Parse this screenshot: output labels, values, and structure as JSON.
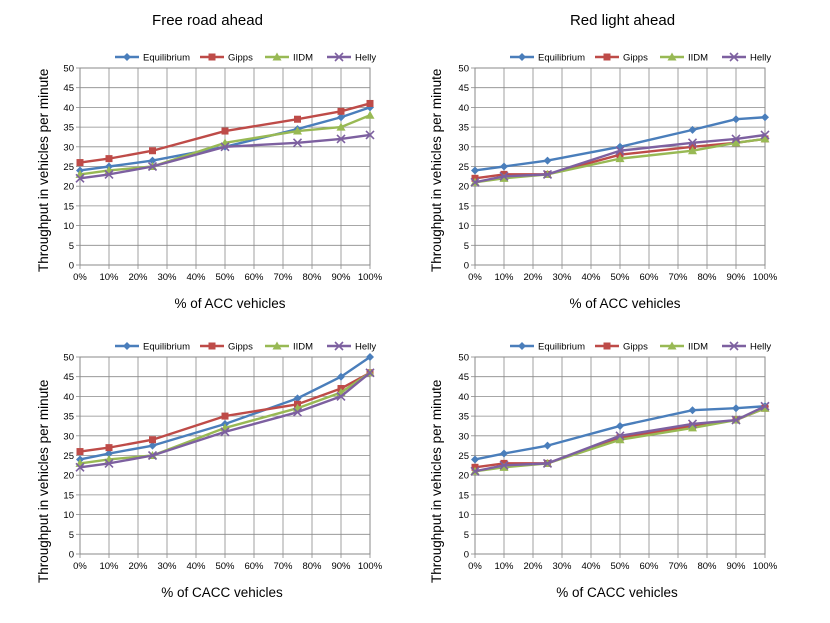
{
  "legend_labels": [
    "Equilibrium",
    "Gipps",
    "IIDM",
    "Helly"
  ],
  "series_colors": [
    "#4a7ebb",
    "#be4b48",
    "#98b954",
    "#7d60a0"
  ],
  "series_markers": [
    "diamond",
    "square",
    "triangle",
    "x"
  ],
  "chart_data": [
    {
      "type": "line",
      "title": "Free road ahead",
      "xlabel": "% of ACC vehicles",
      "ylabel": "Throughput in vehicles per minute",
      "x": [
        0,
        10,
        25,
        50,
        75,
        90,
        100
      ],
      "xticks": [
        "0%",
        "10%",
        "20%",
        "30%",
        "40%",
        "50%",
        "60%",
        "70%",
        "80%",
        "90%",
        "100%"
      ],
      "ylim": [
        0,
        50
      ],
      "yticks": [
        0,
        5,
        10,
        15,
        20,
        25,
        30,
        35,
        40,
        45,
        50
      ],
      "legend": "top",
      "series": [
        {
          "name": "Equilibrium",
          "values": [
            24,
            25,
            26.5,
            30,
            34.5,
            37.5,
            40
          ]
        },
        {
          "name": "Gipps",
          "values": [
            26,
            27,
            29,
            34,
            37,
            39,
            41
          ]
        },
        {
          "name": "IIDM",
          "values": [
            23,
            24,
            25,
            31,
            34,
            35,
            38
          ]
        },
        {
          "name": "Helly",
          "values": [
            22,
            23,
            25,
            30,
            31,
            32,
            33
          ]
        }
      ]
    },
    {
      "type": "line",
      "title": "Red light ahead",
      "xlabel": "% of ACC vehicles",
      "ylabel": "Throughput in vehicles per minute",
      "x": [
        0,
        10,
        25,
        50,
        75,
        90,
        100
      ],
      "xticks": [
        "0%",
        "10%",
        "20%",
        "30%",
        "40%",
        "50%",
        "60%",
        "70%",
        "80%",
        "90%",
        "100%"
      ],
      "ylim": [
        0,
        50
      ],
      "yticks": [
        0,
        5,
        10,
        15,
        20,
        25,
        30,
        35,
        40,
        45,
        50
      ],
      "legend": "top",
      "series": [
        {
          "name": "Equilibrium",
          "values": [
            24,
            25,
            26.5,
            30,
            34.3,
            37,
            37.5
          ]
        },
        {
          "name": "Gipps",
          "values": [
            22,
            23,
            23,
            28,
            30,
            31,
            32
          ]
        },
        {
          "name": "IIDM",
          "values": [
            21,
            22,
            23,
            27,
            29,
            31,
            32
          ]
        },
        {
          "name": "Helly",
          "values": [
            21,
            22.5,
            23,
            29,
            31,
            32,
            33
          ]
        }
      ]
    },
    {
      "type": "line",
      "title": "",
      "xlabel": "% of CACC vehicles",
      "ylabel": "Throughput in vehicles per minute",
      "x": [
        0,
        10,
        25,
        50,
        75,
        90,
        100
      ],
      "xticks": [
        "0%",
        "10%",
        "20%",
        "30%",
        "40%",
        "50%",
        "60%",
        "70%",
        "80%",
        "90%",
        "100%"
      ],
      "ylim": [
        0,
        50
      ],
      "yticks": [
        0,
        5,
        10,
        15,
        20,
        25,
        30,
        35,
        40,
        45,
        50
      ],
      "legend": "top",
      "series": [
        {
          "name": "Equilibrium",
          "values": [
            24,
            25.5,
            27.5,
            33,
            39.5,
            45,
            50
          ]
        },
        {
          "name": "Gipps",
          "values": [
            26,
            27,
            29,
            35,
            38,
            42,
            46
          ]
        },
        {
          "name": "IIDM",
          "values": [
            23,
            24,
            25,
            32,
            37,
            41,
            46
          ]
        },
        {
          "name": "Helly",
          "values": [
            22,
            23,
            25,
            31,
            36,
            40,
            46
          ]
        }
      ]
    },
    {
      "type": "line",
      "title": "",
      "xlabel": "% of CACC vehicles",
      "ylabel": "Throughput in vehicles per minute",
      "x": [
        0,
        10,
        25,
        50,
        75,
        90,
        100
      ],
      "xticks": [
        "0%",
        "10%",
        "20%",
        "30%",
        "40%",
        "50%",
        "60%",
        "70%",
        "80%",
        "90%",
        "100%"
      ],
      "ylim": [
        0,
        50
      ],
      "yticks": [
        0,
        5,
        10,
        15,
        20,
        25,
        30,
        35,
        40,
        45,
        50
      ],
      "legend": "top",
      "series": [
        {
          "name": "Equilibrium",
          "values": [
            24,
            25.5,
            27.5,
            32.5,
            36.5,
            37,
            37.5
          ]
        },
        {
          "name": "Gipps",
          "values": [
            22,
            23,
            23,
            29.5,
            32.5,
            34,
            37
          ]
        },
        {
          "name": "IIDM",
          "values": [
            21,
            22,
            23,
            29,
            32,
            34,
            37
          ]
        },
        {
          "name": "Helly",
          "values": [
            21,
            22.5,
            23,
            30,
            33,
            34,
            37.5
          ]
        }
      ]
    }
  ]
}
